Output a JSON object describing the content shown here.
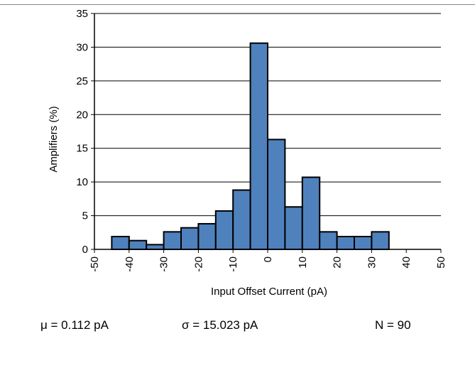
{
  "chart_data": {
    "type": "bar",
    "xlabel": "Input Offset Current (pA)",
    "ylabel": "Amplifiers (%)",
    "ylim": [
      0,
      35
    ],
    "yticks": [
      0,
      5,
      10,
      15,
      20,
      25,
      30,
      35
    ],
    "xlim": [
      -50,
      50
    ],
    "xticks": [
      -50,
      -40,
      -30,
      -20,
      -10,
      0,
      10,
      20,
      30,
      40,
      50
    ],
    "bin_width": 5,
    "bins": [
      {
        "start": -45,
        "end": -40,
        "value": 1.9
      },
      {
        "start": -40,
        "end": -35,
        "value": 1.3
      },
      {
        "start": -35,
        "end": -30,
        "value": 0.7
      },
      {
        "start": -30,
        "end": -25,
        "value": 2.6
      },
      {
        "start": -25,
        "end": -20,
        "value": 3.2
      },
      {
        "start": -20,
        "end": -15,
        "value": 3.8
      },
      {
        "start": -15,
        "end": -10,
        "value": 5.7
      },
      {
        "start": -10,
        "end": -5,
        "value": 8.8
      },
      {
        "start": -5,
        "end": 0,
        "value": 30.6
      },
      {
        "start": 0,
        "end": 5,
        "value": 16.3
      },
      {
        "start": 5,
        "end": 10,
        "value": 6.3
      },
      {
        "start": 10,
        "end": 15,
        "value": 10.7
      },
      {
        "start": 15,
        "end": 20,
        "value": 2.6
      },
      {
        "start": 20,
        "end": 25,
        "value": 1.9
      },
      {
        "start": 25,
        "end": 30,
        "value": 1.9
      },
      {
        "start": 30,
        "end": 35,
        "value": 2.6
      }
    ],
    "grid": "horizontal",
    "bar_color": "#4f81bd",
    "bar_edge_color": "#000000"
  },
  "stats": {
    "mean": "μ = 0.112 pA",
    "sigma": "σ = 15.023 pA",
    "count": "N = 90"
  }
}
